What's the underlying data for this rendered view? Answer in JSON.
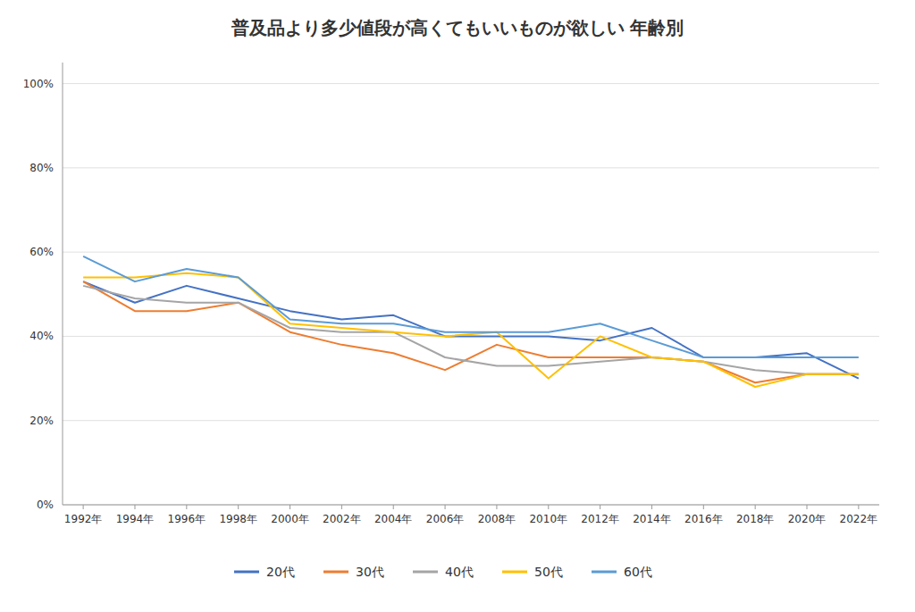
{
  "chart_data": {
    "type": "line",
    "title": "普及品より多少値段が高くてもいいものが欲しい 年齢別",
    "x": [
      1992,
      1994,
      1996,
      1998,
      2000,
      2002,
      2004,
      2006,
      2008,
      2010,
      2012,
      2014,
      2016,
      2018,
      2020,
      2022
    ],
    "xlim": [
      1991.2,
      2022.8
    ],
    "xticks": [
      {
        "value": 1992,
        "label": "1992年"
      },
      {
        "value": 1994,
        "label": "1994年"
      },
      {
        "value": 1996,
        "label": "1996年"
      },
      {
        "value": 1998,
        "label": "1998年"
      },
      {
        "value": 2000,
        "label": "2000年"
      },
      {
        "value": 2002,
        "label": "2002年"
      },
      {
        "value": 2004,
        "label": "2004年"
      },
      {
        "value": 2006,
        "label": "2006年"
      },
      {
        "value": 2008,
        "label": "2008年"
      },
      {
        "value": 2010,
        "label": "2010年"
      },
      {
        "value": 2012,
        "label": "2012年"
      },
      {
        "value": 2014,
        "label": "2014年"
      },
      {
        "value": 2016,
        "label": "2016年"
      },
      {
        "value": 2018,
        "label": "2018年"
      },
      {
        "value": 2020,
        "label": "2020年"
      },
      {
        "value": 2022,
        "label": "2022年"
      }
    ],
    "ylim": [
      0,
      1.05
    ],
    "yticks": [
      {
        "value": 0.0,
        "label": "0%"
      },
      {
        "value": 0.2,
        "label": "20%"
      },
      {
        "value": 0.4,
        "label": "40%"
      },
      {
        "value": 0.6,
        "label": "60%"
      },
      {
        "value": 0.8,
        "label": "80%"
      },
      {
        "value": 1.0,
        "label": "100%"
      }
    ],
    "grid": true,
    "legend": "bottom",
    "series": [
      {
        "name": "20代",
        "color": "#4472C4",
        "values": [
          0.53,
          0.48,
          0.52,
          0.49,
          0.46,
          0.44,
          0.45,
          0.4,
          0.4,
          0.4,
          0.39,
          0.42,
          0.35,
          0.35,
          0.36,
          0.3
        ]
      },
      {
        "name": "30代",
        "color": "#ED7D31",
        "values": [
          0.53,
          0.46,
          0.46,
          0.48,
          0.41,
          0.38,
          0.36,
          0.32,
          0.38,
          0.35,
          0.35,
          0.35,
          0.34,
          0.29,
          0.31,
          0.31
        ]
      },
      {
        "name": "40代",
        "color": "#A5A5A5",
        "values": [
          0.52,
          0.49,
          0.48,
          0.48,
          0.42,
          0.41,
          0.41,
          0.35,
          0.33,
          0.33,
          0.34,
          0.35,
          0.34,
          0.32,
          0.31,
          0.31
        ]
      },
      {
        "name": "50代",
        "color": "#FFC000",
        "values": [
          0.54,
          0.54,
          0.55,
          0.54,
          0.43,
          0.42,
          0.41,
          0.4,
          0.41,
          0.3,
          0.4,
          0.35,
          0.34,
          0.28,
          0.31,
          0.31
        ]
      },
      {
        "name": "60代",
        "color": "#5B9BD5",
        "values": [
          0.59,
          0.53,
          0.56,
          0.54,
          0.44,
          0.43,
          0.43,
          0.41,
          0.41,
          0.41,
          0.43,
          0.39,
          0.35,
          0.35,
          0.35,
          0.35
        ]
      }
    ]
  }
}
